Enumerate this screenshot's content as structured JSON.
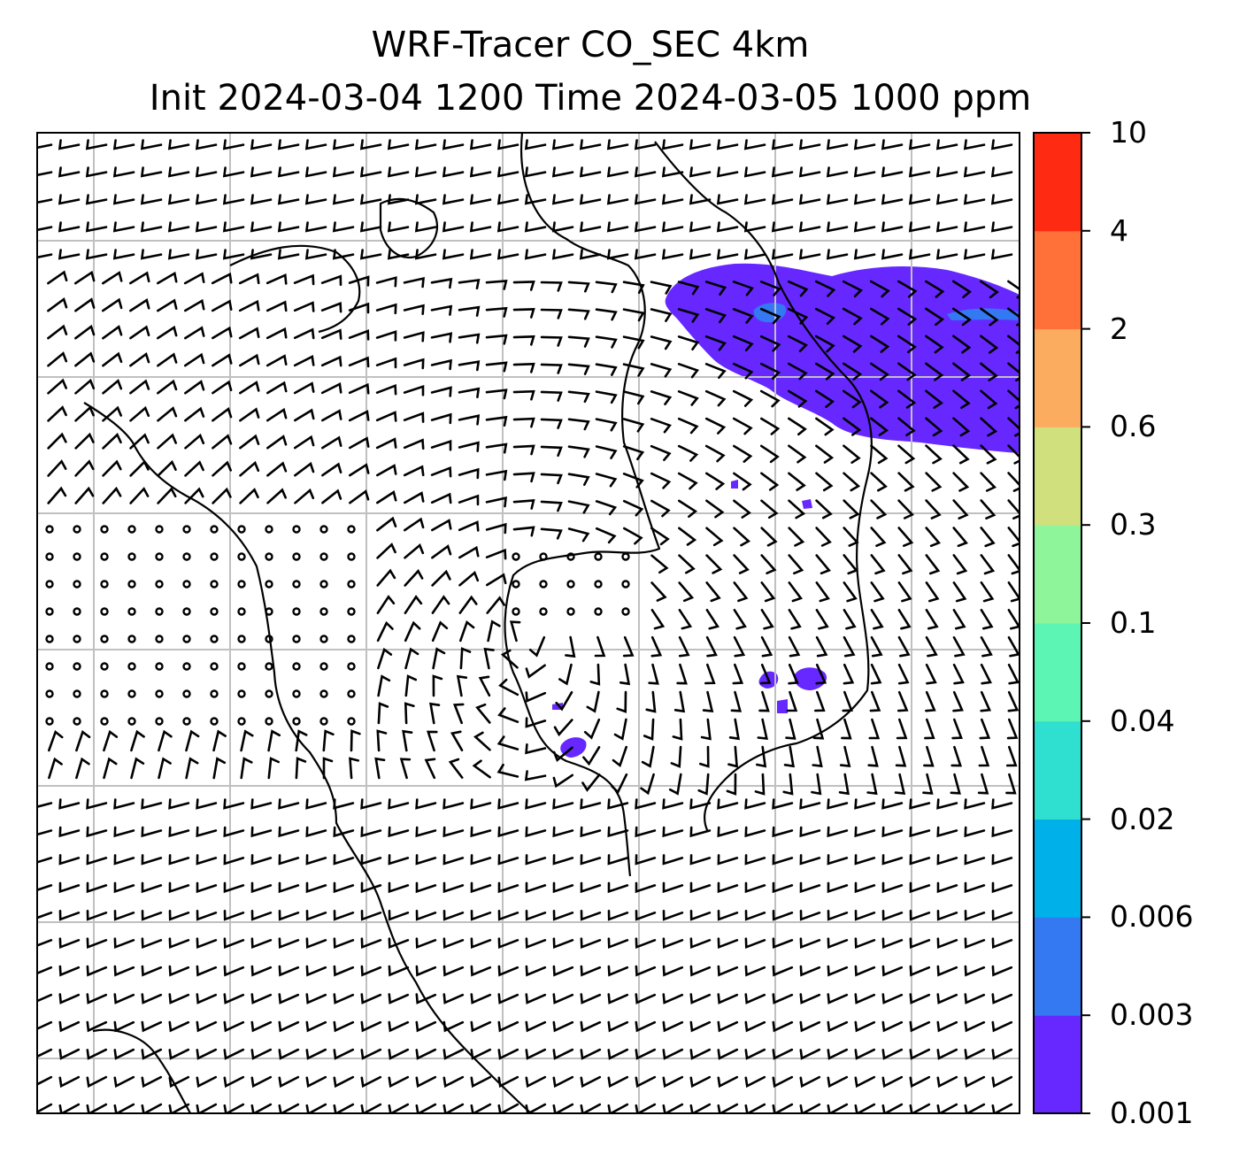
{
  "title": {
    "line1": "WRF-Tracer CO_SEC 4km",
    "line2": "Init 2024-03-04 1200 Time 2024-03-05 1000 ppm"
  },
  "colorbar": {
    "ticks": [
      "0.001",
      "0.003",
      "0.006",
      "0.02",
      "0.04",
      "0.1",
      "0.3",
      "0.6",
      "2",
      "4",
      "10"
    ],
    "colors": [
      "#6628ff",
      "#3478f2",
      "#00b0e8",
      "#2fdfcf",
      "#5cf5b3",
      "#8ef59a",
      "#d0e07c",
      "#fbac5f",
      "#ff7138",
      "#ff2a12"
    ]
  },
  "map": {
    "grid_color": "#c0c0c0",
    "plume_color": "#6628ff",
    "plume_core_color": "#3478f2",
    "coastline_color": "#000000",
    "wind_barb_color": "#000000"
  }
}
